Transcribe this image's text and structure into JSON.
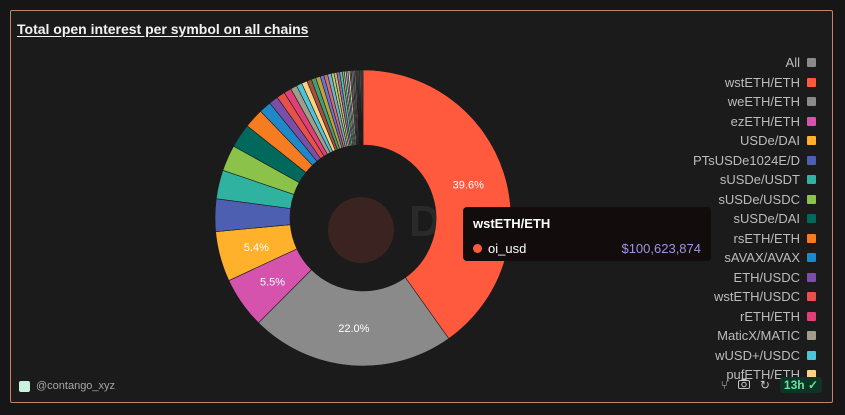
{
  "title": "Total open interest per symbol on all chains",
  "footer": {
    "handle": "@contango_xyz",
    "badge": "13h"
  },
  "watermark": "Du",
  "tooltip": {
    "title": "wstETH/ETH",
    "series": "oi_usd",
    "value": "$100,623,874",
    "color": "#ff5a3d"
  },
  "legend": [
    {
      "label": "All",
      "color": "#8a8a8a"
    },
    {
      "label": "wstETH/ETH",
      "color": "#ff5a3d"
    },
    {
      "label": "weETH/ETH",
      "color": "#8a8a8a"
    },
    {
      "label": "ezETH/ETH",
      "color": "#d553ad"
    },
    {
      "label": "USDe/DAI",
      "color": "#ffb12b"
    },
    {
      "label": "PTsUSDe1024E/D",
      "color": "#4d5fb0"
    },
    {
      "label": "sUSDe/USDT",
      "color": "#2fb3a0"
    },
    {
      "label": "sUSDe/USDC",
      "color": "#8bc34a"
    },
    {
      "label": "sUSDe/DAI",
      "color": "#00695c"
    },
    {
      "label": "rsETH/ETH",
      "color": "#f57c20"
    },
    {
      "label": "sAVAX/AVAX",
      "color": "#1e88c8"
    },
    {
      "label": "ETH/USDC",
      "color": "#7b4fa8"
    },
    {
      "label": "wstETH/USDC",
      "color": "#e8504a"
    },
    {
      "label": "rETH/ETH",
      "color": "#e0407a"
    },
    {
      "label": "MaticX/MATIC",
      "color": "#9e9e8a"
    },
    {
      "label": "wUSD+/USDC",
      "color": "#4fc3d6"
    },
    {
      "label": "pufETH/ETH",
      "color": "#ffd180"
    }
  ],
  "chart_data": {
    "type": "pie",
    "series": "oi_usd",
    "hole": true,
    "slices": [
      {
        "label": "wstETH/ETH",
        "value": 39.6,
        "display": "39.6%",
        "color": "#ff5a3d"
      },
      {
        "label": "weETH/ETH",
        "value": 22.0,
        "display": "22.0%",
        "color": "#8a8a8a"
      },
      {
        "label": "ezETH/ETH",
        "value": 5.5,
        "display": "5.5%",
        "color": "#d553ad"
      },
      {
        "label": "USDe/DAI",
        "value": 5.4,
        "display": "5.4%",
        "color": "#ffb12b"
      },
      {
        "label": "PTsUSDe1024E/D",
        "value": 3.5,
        "display": "",
        "color": "#4d5fb0"
      },
      {
        "label": "sUSDe/USDT",
        "value": 3.1,
        "display": "",
        "color": "#2fb3a0"
      },
      {
        "label": "sUSDe/USDC",
        "value": 2.8,
        "display": "",
        "color": "#8bc34a"
      },
      {
        "label": "sUSDe/DAI",
        "value": 2.6,
        "display": "",
        "color": "#00695c"
      },
      {
        "label": "rsETH/ETH",
        "value": 2.1,
        "display": "",
        "color": "#f57c20"
      },
      {
        "label": "sAVAX/AVAX",
        "value": 1.3,
        "display": "",
        "color": "#1e88c8"
      },
      {
        "label": "ETH/USDC",
        "value": 1.0,
        "display": "",
        "color": "#7b4fa8"
      },
      {
        "label": "wstETH/USDC",
        "value": 0.9,
        "display": "",
        "color": "#e8504a"
      },
      {
        "label": "rETH/ETH",
        "value": 0.8,
        "display": "",
        "color": "#e0407a"
      },
      {
        "label": "MaticX/MATIC",
        "value": 0.7,
        "display": "",
        "color": "#9e9e8a"
      },
      {
        "label": "wUSD+/USDC",
        "value": 0.6,
        "display": "",
        "color": "#4fc3d6"
      },
      {
        "label": "pufETH/ETH",
        "value": 0.6,
        "display": "",
        "color": "#ffd180"
      },
      {
        "label": "",
        "value": 0.5,
        "display": "",
        "color": "#a64d3d"
      },
      {
        "label": "",
        "value": 0.5,
        "display": "",
        "color": "#3f9f6f"
      },
      {
        "label": "",
        "value": 0.5,
        "display": "",
        "color": "#c0a040"
      },
      {
        "label": "",
        "value": 0.4,
        "display": "",
        "color": "#6f6fd0"
      },
      {
        "label": "",
        "value": 0.4,
        "display": "",
        "color": "#d07070"
      },
      {
        "label": "",
        "value": 0.4,
        "display": "",
        "color": "#70b0d0"
      },
      {
        "label": "",
        "value": 0.3,
        "display": "",
        "color": "#b0d070"
      },
      {
        "label": "",
        "value": 0.3,
        "display": "",
        "color": "#d0b070"
      },
      {
        "label": "",
        "value": 0.3,
        "display": "",
        "color": "#9070b0"
      },
      {
        "label": "",
        "value": 0.3,
        "display": "",
        "color": "#50c0a0"
      },
      {
        "label": "",
        "value": 0.2,
        "display": "",
        "color": "#e09090"
      },
      {
        "label": "",
        "value": 0.2,
        "display": "",
        "color": "#90e090"
      },
      {
        "label": "",
        "value": 0.2,
        "display": "",
        "color": "#9090e0"
      },
      {
        "label": "",
        "value": 0.2,
        "display": "",
        "color": "#e0e090"
      },
      {
        "label": "",
        "value": 0.15,
        "display": "",
        "color": "#b06080"
      },
      {
        "label": "",
        "value": 0.15,
        "display": "",
        "color": "#60b080"
      },
      {
        "label": "",
        "value": 0.15,
        "display": "",
        "color": "#8060b0"
      },
      {
        "label": "",
        "value": 0.15,
        "display": "",
        "color": "#b08060"
      },
      {
        "label": "",
        "value": 0.1,
        "display": "",
        "color": "#6080b0"
      },
      {
        "label": "",
        "value": 0.1,
        "display": "",
        "color": "#80b060"
      },
      {
        "label": "",
        "value": 0.1,
        "display": "",
        "color": "#c05050"
      },
      {
        "label": "",
        "value": 0.1,
        "display": "",
        "color": "#50c050"
      },
      {
        "label": "",
        "value": 0.1,
        "display": "",
        "color": "#5050c0"
      },
      {
        "label": "",
        "value": 0.1,
        "display": "",
        "color": "#c0c050"
      },
      {
        "label": "",
        "value": 0.1,
        "display": "",
        "color": "#50c0c0"
      },
      {
        "label": "",
        "value": 0.1,
        "display": "",
        "color": "#c050c0"
      }
    ]
  }
}
